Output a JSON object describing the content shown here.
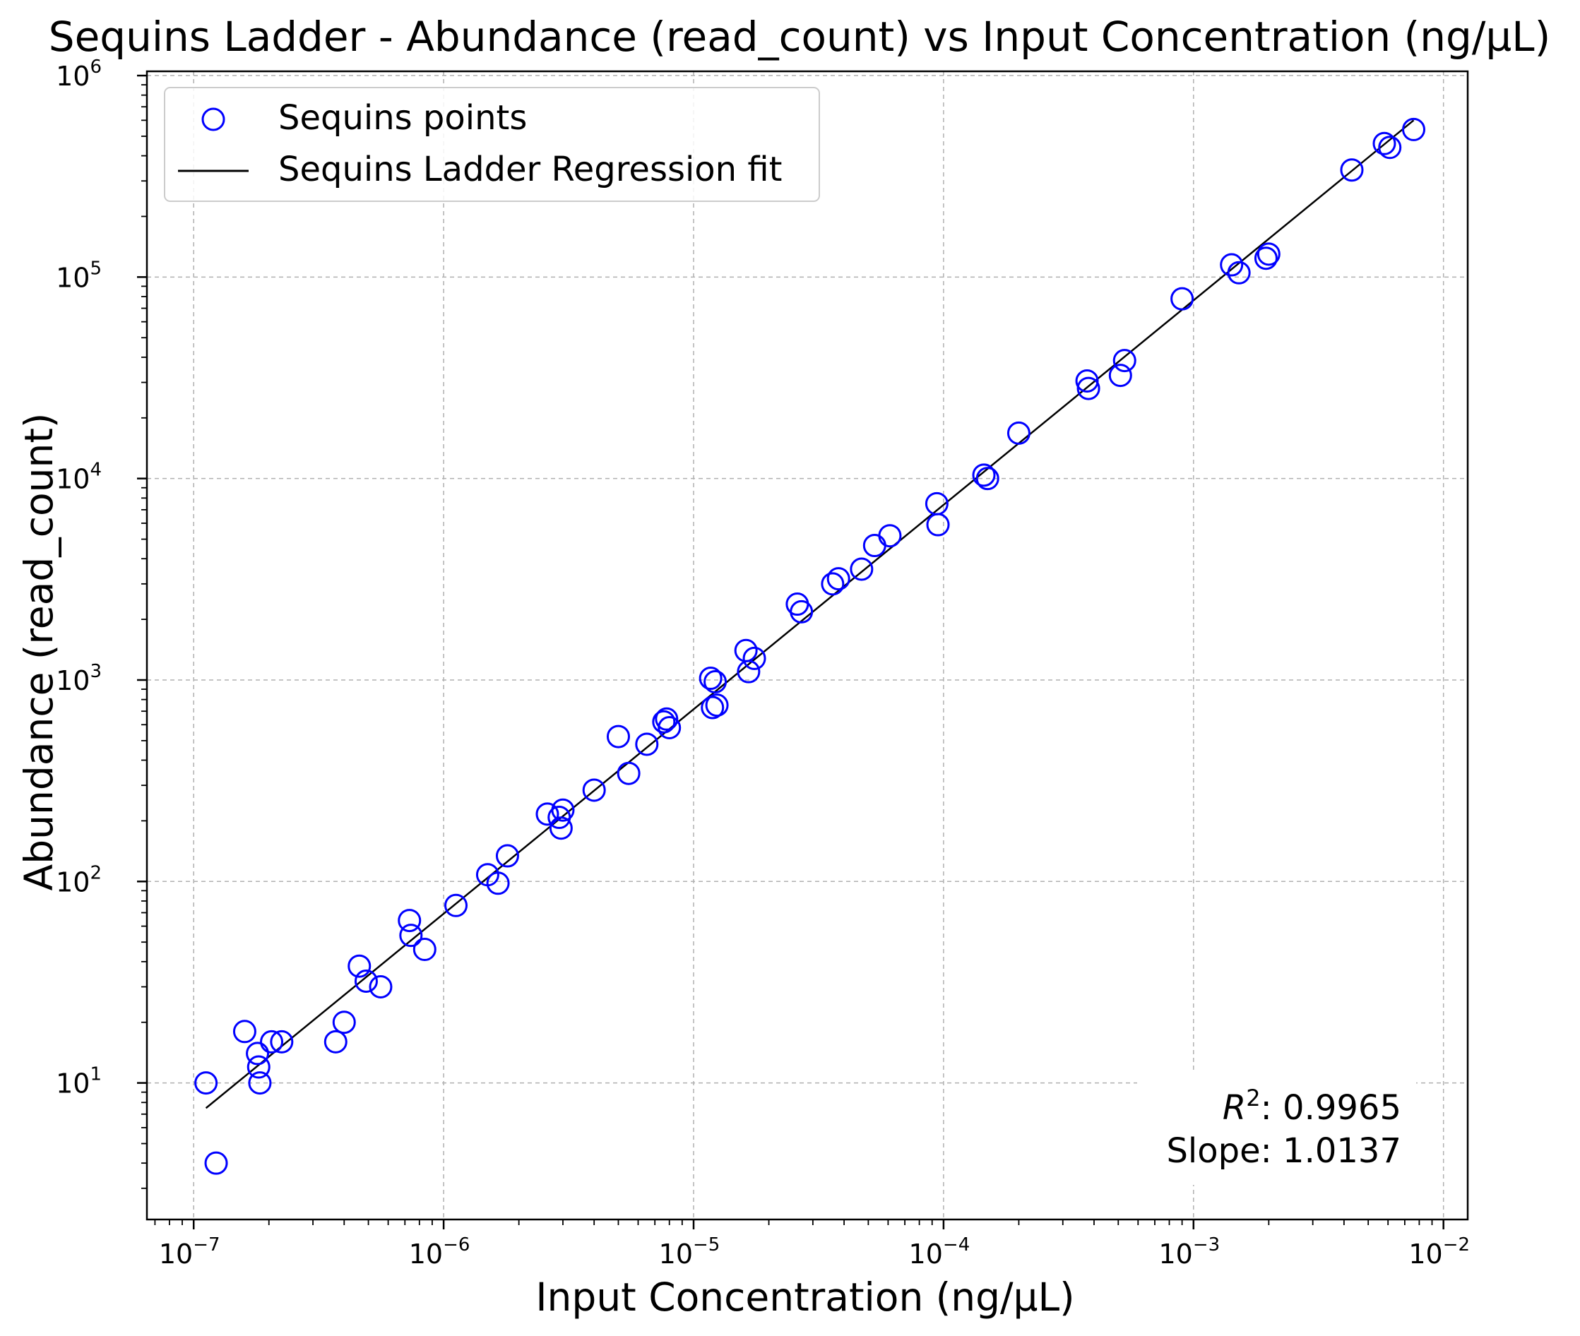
{
  "chart_data": {
    "type": "scatter",
    "title": "Sequins Ladder - Abundance (read_count) vs Input Concentration (ng/µL)",
    "xlabel": "Input Concentration (ng/µL)",
    "ylabel": "Abundance (read_count)",
    "xscale": "log",
    "yscale": "log",
    "xlim": [
      6.5e-08,
      0.0125
    ],
    "ylim": [
      2.1,
      1050000
    ],
    "xticks": [
      1e-07,
      1e-06,
      1e-05,
      0.0001,
      0.001,
      0.01
    ],
    "yticks": [
      10,
      100,
      1000,
      10000,
      100000,
      1000000
    ],
    "grid": true,
    "legend": {
      "position": "top-left",
      "entries": [
        {
          "label": "Sequins points",
          "marker": "circle",
          "color": "#0000ff"
        },
        {
          "label": "Sequins Ladder Regression fit",
          "marker": "line",
          "color": "#000000"
        }
      ]
    },
    "annotations": {
      "r2_label": "R",
      "r2_exp": "2",
      "r2_value": ": 0.9965",
      "slope": "Slope: 1.0137"
    },
    "series": [
      {
        "name": "Sequins points",
        "kind": "scatter",
        "color": "#0000ff",
        "points": [
          [
            1.12e-07,
            10
          ],
          [
            1.23e-07,
            4
          ],
          [
            1.6e-07,
            18
          ],
          [
            1.8e-07,
            14
          ],
          [
            1.82e-07,
            12
          ],
          [
            1.84e-07,
            10
          ],
          [
            2.05e-07,
            16
          ],
          [
            2.25e-07,
            16
          ],
          [
            3.7e-07,
            16
          ],
          [
            4e-07,
            20
          ],
          [
            4.6e-07,
            38
          ],
          [
            4.9e-07,
            32
          ],
          [
            5.6e-07,
            30
          ],
          [
            7.3e-07,
            64
          ],
          [
            7.4e-07,
            54
          ],
          [
            8.4e-07,
            46
          ],
          [
            1.12e-06,
            76
          ],
          [
            1.5e-06,
            108
          ],
          [
            1.65e-06,
            98
          ],
          [
            1.8e-06,
            134
          ],
          [
            2.6e-06,
            216
          ],
          [
            2.9e-06,
            208
          ],
          [
            2.95e-06,
            184
          ],
          [
            3e-06,
            226
          ],
          [
            4e-06,
            284
          ],
          [
            5e-06,
            524
          ],
          [
            5.5e-06,
            344
          ],
          [
            6.5e-06,
            480
          ],
          [
            7.6e-06,
            620
          ],
          [
            7.8e-06,
            640
          ],
          [
            8e-06,
            580
          ],
          [
            1.17e-05,
            1020
          ],
          [
            1.19e-05,
            730
          ],
          [
            1.22e-05,
            980
          ],
          [
            1.24e-05,
            750
          ],
          [
            1.62e-05,
            1400
          ],
          [
            1.66e-05,
            1100
          ],
          [
            1.75e-05,
            1280
          ],
          [
            2.6e-05,
            2380
          ],
          [
            2.7e-05,
            2180
          ],
          [
            3.6e-05,
            3000
          ],
          [
            3.8e-05,
            3180
          ],
          [
            4.7e-05,
            3550
          ],
          [
            5.3e-05,
            4650
          ],
          [
            6.1e-05,
            5200
          ],
          [
            9.4e-05,
            7500
          ],
          [
            9.5e-05,
            5900
          ],
          [
            0.000145,
            10400
          ],
          [
            0.00015,
            10000
          ],
          [
            0.0002,
            16800
          ],
          [
            0.000375,
            30500
          ],
          [
            0.00038,
            28000
          ],
          [
            0.00051,
            32500
          ],
          [
            0.00053,
            38500
          ],
          [
            0.0009,
            78000
          ],
          [
            0.00142,
            115000
          ],
          [
            0.00152,
            105000
          ],
          [
            0.00195,
            124000
          ],
          [
            0.002,
            130000
          ],
          [
            0.0043,
            340000
          ],
          [
            0.0058,
            460000
          ],
          [
            0.0061,
            440000
          ],
          [
            0.0076,
            540000
          ]
        ]
      },
      {
        "name": "Sequins Ladder Regression fit",
        "kind": "line",
        "color": "#000000",
        "points": [
          [
            1.12e-07,
            7.5
          ],
          [
            0.0076,
            600000
          ]
        ]
      }
    ]
  }
}
